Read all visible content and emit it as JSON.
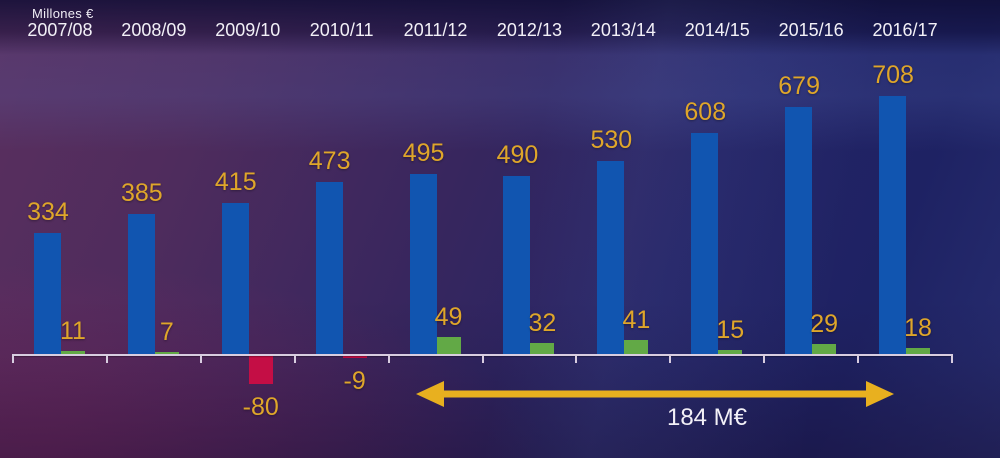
{
  "header": {
    "unit_label": "Millones €"
  },
  "chart_data": {
    "type": "bar",
    "categories": [
      "2007/08",
      "2008/09",
      "2009/10",
      "2010/11",
      "2011/12",
      "2012/13",
      "2013/14",
      "2014/15",
      "2015/16",
      "2016/17"
    ],
    "series": [
      {
        "name": "revenue",
        "values": [
          334,
          385,
          415,
          473,
          495,
          490,
          530,
          608,
          679,
          708
        ]
      },
      {
        "name": "result",
        "values": [
          11,
          7,
          -80,
          -9,
          49,
          32,
          41,
          15,
          29,
          18
        ]
      }
    ],
    "ylabel": "Millones €",
    "ylim": [
      -80,
      708
    ],
    "grid": false,
    "legend": "none",
    "annotation": {
      "label": "184 M€",
      "from_category": "2011/12",
      "to_category": "2016/17"
    }
  },
  "colors": {
    "revenue_bar": "#1155b0",
    "result_positive": "#62a946",
    "result_negative": "#c40e45",
    "value_label": "#dfa62a",
    "axis": "#d8cde0",
    "arrow": "#e8b01f",
    "text": "#f2f0f7"
  }
}
